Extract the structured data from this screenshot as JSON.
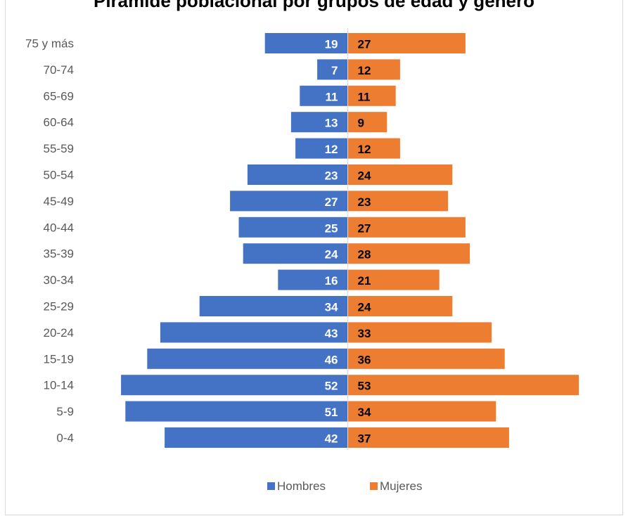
{
  "chart_data": {
    "type": "bar",
    "title": "Pirámide poblacional por grupos de edad y género",
    "orientation": "horizontal-diverging",
    "categories": [
      "75 y más",
      "70-74",
      "65-69",
      "60-64",
      "55-59",
      "50-54",
      "45-49",
      "40-44",
      "35-39",
      "30-34",
      "25-29",
      "20-24",
      "15-19",
      "10-14",
      "5-9",
      "0-4"
    ],
    "series": [
      {
        "name": "Hombres",
        "color": "#4472c4",
        "label_color": "#ffffff",
        "side": "left",
        "values": [
          19,
          7,
          11,
          13,
          12,
          23,
          27,
          25,
          24,
          16,
          34,
          43,
          46,
          52,
          51,
          42
        ]
      },
      {
        "name": "Mujeres",
        "color": "#ed7d31",
        "label_color": "#000000",
        "side": "right",
        "values": [
          27,
          12,
          11,
          9,
          12,
          24,
          23,
          27,
          28,
          21,
          24,
          33,
          36,
          53,
          34,
          37
        ]
      }
    ],
    "xlim": [
      -55,
      55
    ],
    "grid": false,
    "legend_position": "bottom"
  }
}
